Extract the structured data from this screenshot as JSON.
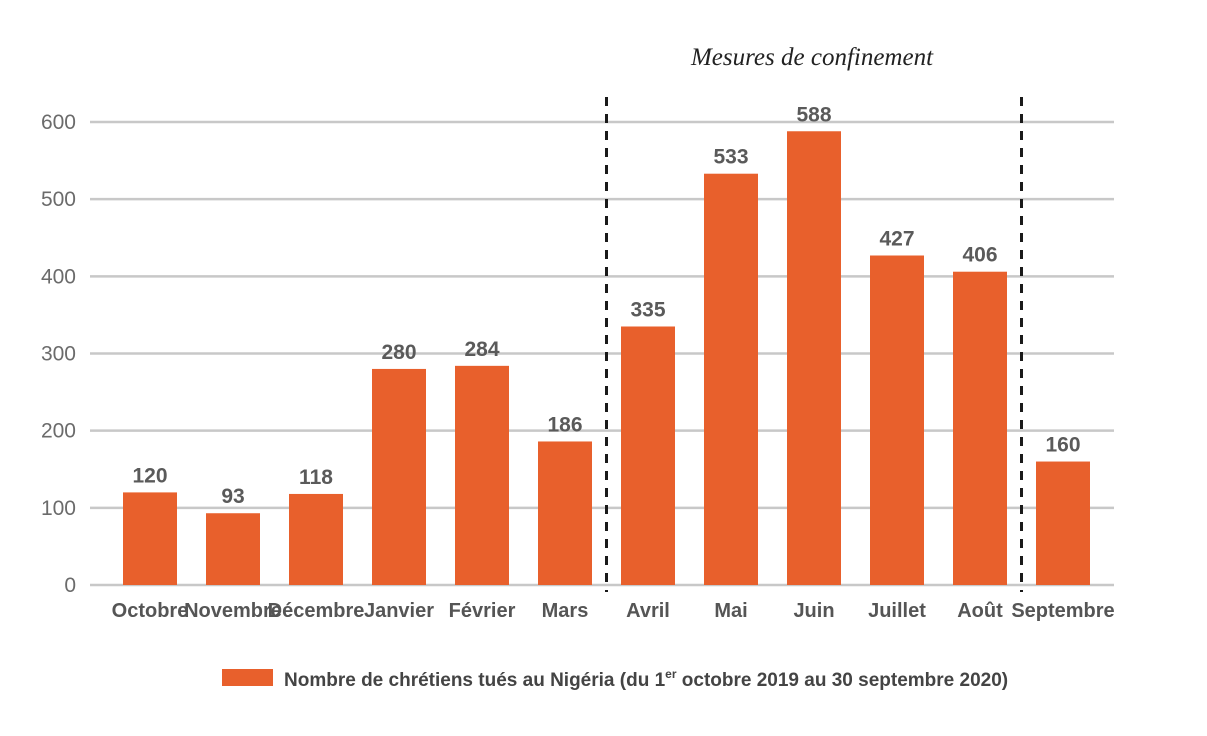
{
  "chart_data": {
    "type": "bar",
    "categories": [
      "Octobre",
      "Novembre",
      "Décembre",
      "Janvier",
      "Février",
      "Mars",
      "Avril",
      "Mai",
      "Juin",
      "Juillet",
      "Août",
      "Septembre"
    ],
    "series": [
      {
        "name": "Nombre de chrétiens tués au Nigéria (du 1er octobre 2019 au 30 septembre 2020)",
        "values": [
          120,
          93,
          118,
          280,
          284,
          186,
          335,
          533,
          588,
          427,
          406,
          160
        ]
      }
    ],
    "data_labels": [
      "120",
      "93",
      "118",
      "280",
      "284",
      "186",
      "335",
      "533",
      "588",
      "427",
      "406",
      "160"
    ],
    "y_ticks": [
      "0",
      "100",
      "200",
      "300",
      "400",
      "500",
      "600"
    ],
    "ylim": [
      0,
      600
    ],
    "grid": true,
    "bar_color": "#e8602c",
    "legend": {
      "position": "bottom",
      "prefix": "Nombre de chrétiens tués au Nigéria (du 1",
      "superscript": "er",
      "suffix": " octobre 2019 au 30 septembre 2020)"
    },
    "annotation": {
      "text": "Mesures de confinement",
      "span": [
        "Avril",
        "Août"
      ],
      "style": "dashed vertical lines"
    }
  }
}
